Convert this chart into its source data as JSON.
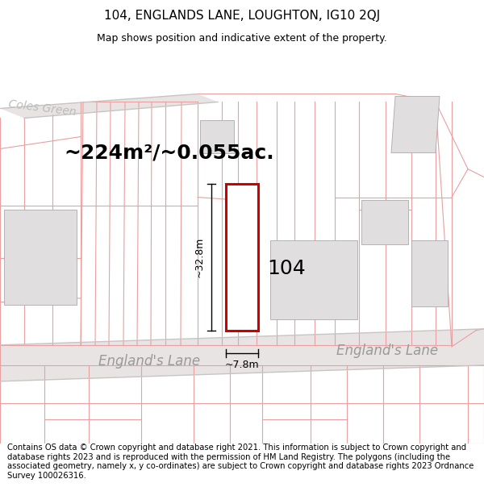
{
  "title": "104, ENGLANDS LANE, LOUGHTON, IG10 2QJ",
  "subtitle": "Map shows position and indicative extent of the property.",
  "area_text": "~224m²/~0.055ac.",
  "label_104": "104",
  "dim_height": "~32.8m",
  "dim_width": "~7.8m",
  "street_label_left": "England's Lane",
  "street_label_right": "England's Lane",
  "road_label_topleft": "Coles Green",
  "footer_text": "Contains OS data © Crown copyright and database right 2021. This information is subject to Crown copyright and database rights 2023 and is reproduced with the permission of HM Land Registry. The polygons (including the associated geometry, namely x, y co-ordinates) are subject to Crown copyright and database rights 2023 Ordnance Survey 100026316.",
  "bg_color": "#ffffff",
  "map_bg": "#f7f4f4",
  "road_fill": "#e8e4e4",
  "plot_line_color": "#e8a0a0",
  "highlight_color": "#cc0000",
  "building_fill": "#e0dede",
  "road_edge_color": "#c8c4c4",
  "title_fontsize": 11,
  "subtitle_fontsize": 9,
  "area_fontsize": 18,
  "label_fontsize": 18,
  "dim_fontsize": 9,
  "street_fontsize": 12,
  "coles_fontsize": 10,
  "footer_fontsize": 7.2
}
